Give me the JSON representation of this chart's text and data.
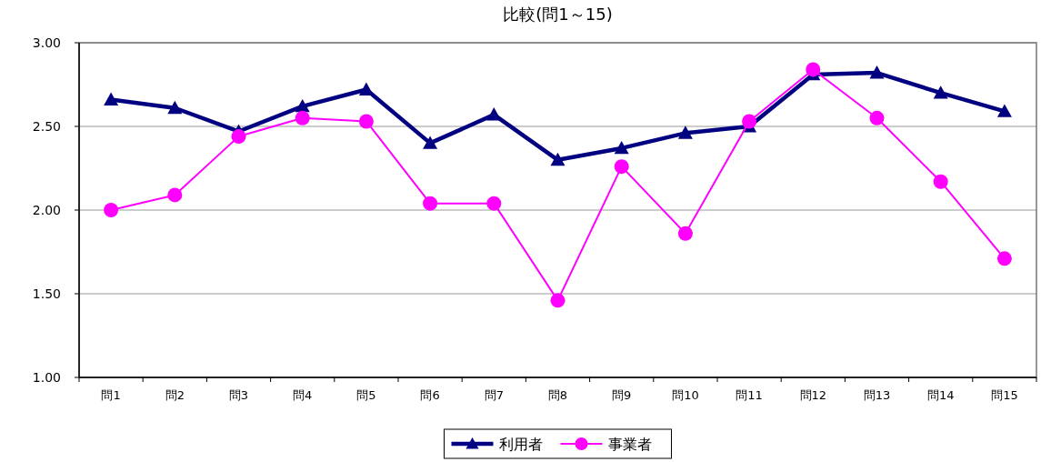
{
  "chart_data": {
    "type": "line",
    "title": "比較(問1～15)",
    "categories": [
      "問1",
      "問2",
      "問3",
      "問4",
      "問5",
      "問6",
      "問7",
      "問8",
      "問9",
      "問10",
      "問11",
      "問12",
      "問13",
      "問14",
      "問15"
    ],
    "series": [
      {
        "name": "利用者",
        "color": "#000080",
        "marker": "triangle",
        "values": [
          2.66,
          2.61,
          2.47,
          2.62,
          2.72,
          2.4,
          2.57,
          2.3,
          2.37,
          2.46,
          2.5,
          2.81,
          2.82,
          2.7,
          2.59
        ]
      },
      {
        "name": "事業者",
        "color": "#ff00ff",
        "marker": "circle",
        "values": [
          2.0,
          2.09,
          2.44,
          2.55,
          2.53,
          2.04,
          2.04,
          1.46,
          2.26,
          1.86,
          2.53,
          2.84,
          2.55,
          2.17,
          1.71
        ]
      }
    ],
    "ylim": [
      1.0,
      3.0
    ],
    "yticks": [
      {
        "value": 1.0,
        "label": "1.00"
      },
      {
        "value": 1.5,
        "label": "1.50"
      },
      {
        "value": 2.0,
        "label": "2.00"
      },
      {
        "value": 2.5,
        "label": "2.50"
      },
      {
        "value": 3.0,
        "label": "3.00"
      }
    ],
    "grid": "y",
    "legend": "bottom"
  }
}
